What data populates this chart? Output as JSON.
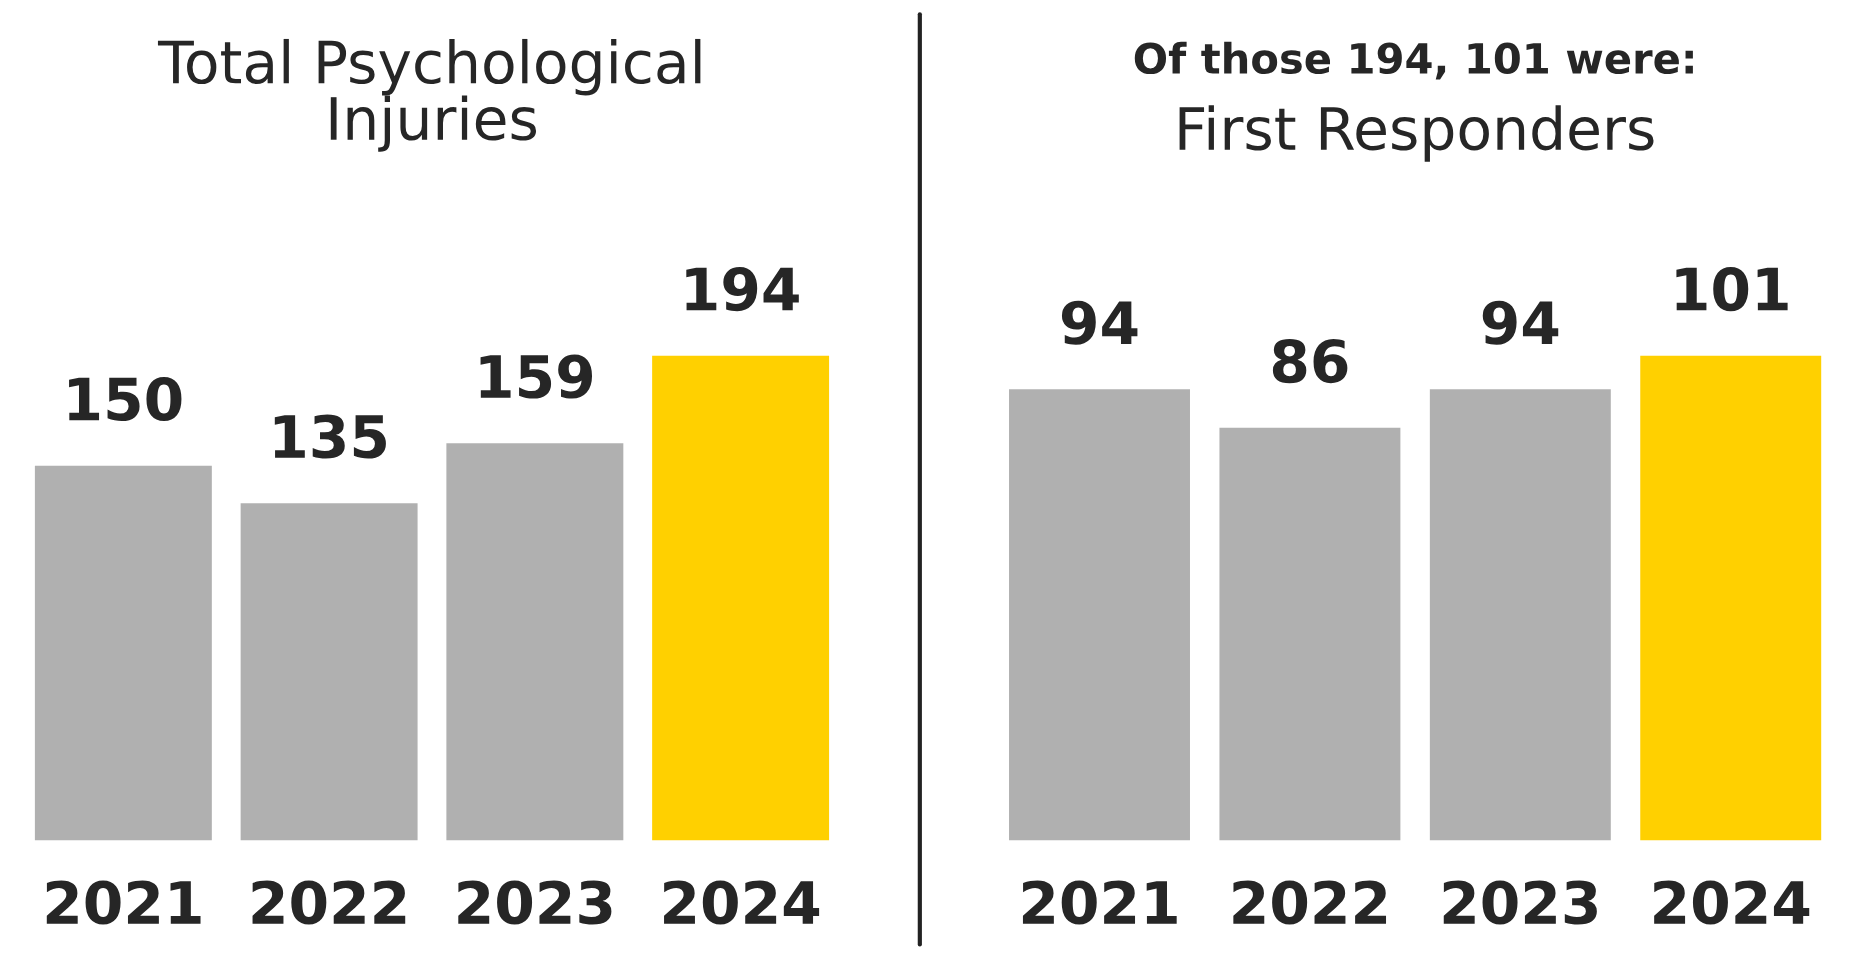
{
  "chart_data": [
    {
      "type": "bar",
      "title": "Total Psychological\nInjuries",
      "categories": [
        "2021",
        "2022",
        "2023",
        "2024"
      ],
      "values": [
        150,
        135,
        159,
        194
      ],
      "colors": [
        "#b0b0b0",
        "#b0b0b0",
        "#b0b0b0",
        "#ffd000"
      ],
      "data_labels": true,
      "tick_labels": "x"
    },
    {
      "type": "bar",
      "subtitle": "Of those 194, 101 were:",
      "title": "First Responders",
      "categories": [
        "2021",
        "2022",
        "2023",
        "2024"
      ],
      "values": [
        94,
        86,
        94,
        101
      ],
      "colors": [
        "#b0b0b0",
        "#b0b0b0",
        "#b0b0b0",
        "#ffd000"
      ],
      "data_labels": true,
      "tick_labels": "x"
    }
  ]
}
